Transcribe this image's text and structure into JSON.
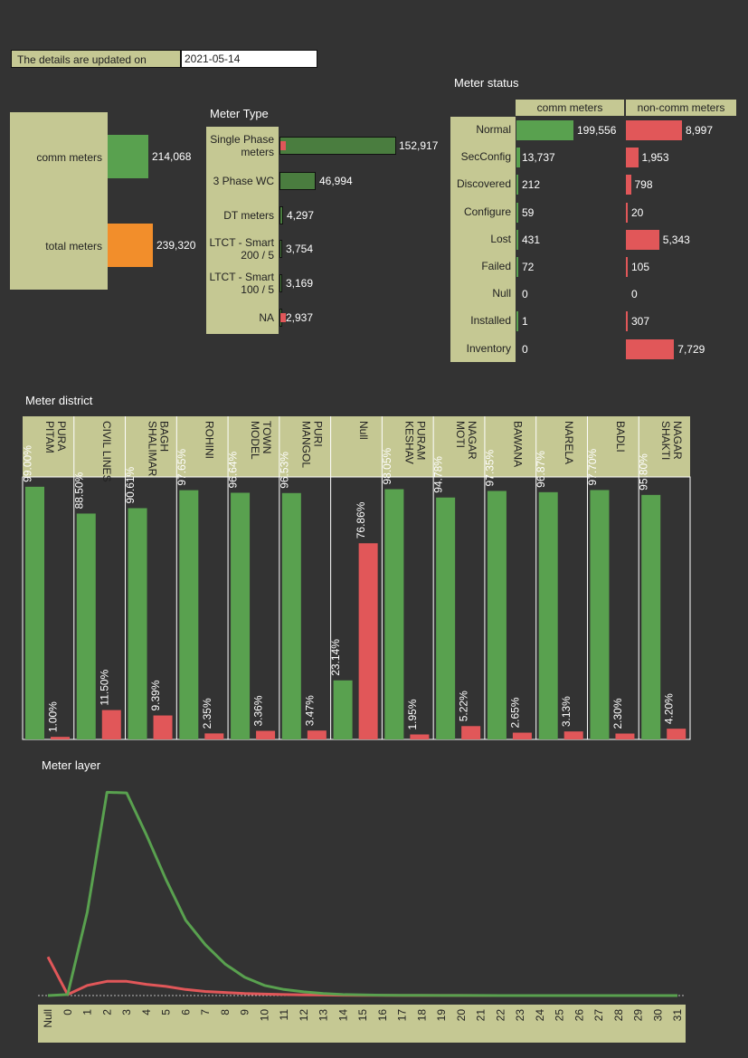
{
  "update": {
    "label": "The details are updated on",
    "date": "2021-05-14"
  },
  "colors": {
    "green": "#59a14f",
    "darkgreen": "#4a7d3f",
    "red": "#e15759",
    "orange": "#f28e2b",
    "khaki": "#c5c893",
    "bg": "#333333"
  },
  "totals": {
    "rows": [
      {
        "label": "comm meters",
        "value": 214068,
        "display": "214,068",
        "color": "#59a14f"
      },
      {
        "label": "total meters",
        "value": 239320,
        "display": "239,320",
        "color": "#f28e2b"
      }
    ]
  },
  "meter_type": {
    "title": "Meter Type",
    "rows": [
      {
        "label": "Single Phase meters",
        "value": 152917,
        "display": "152,917",
        "red": 1
      },
      {
        "label": "3 Phase WC",
        "value": 46994,
        "display": "46,994",
        "red": 0
      },
      {
        "label": "DT meters",
        "value": 4297,
        "display": "4,297",
        "red": 0
      },
      {
        "label": "LTCT - Smart 200 / 5",
        "value": 3754,
        "display": "3,754",
        "red": 0
      },
      {
        "label": "LTCT - Smart 100 / 5",
        "value": 3169,
        "display": "3,169",
        "red": 0
      },
      {
        "label": "NA",
        "value": 2937,
        "display": "2,937",
        "red": 1
      }
    ]
  },
  "meter_status": {
    "title": "Meter status",
    "col_comm": "comm meters",
    "col_noncomm": "non-comm meters",
    "rows": [
      {
        "label": "Normal",
        "comm": 199556,
        "comm_display": "199,556",
        "non": 8997,
        "non_display": "8,997"
      },
      {
        "label": "SecConfig",
        "comm": 13737,
        "comm_display": "13,737",
        "non": 1953,
        "non_display": "1,953"
      },
      {
        "label": "Discovered",
        "comm": 212,
        "comm_display": "212",
        "non": 798,
        "non_display": "798"
      },
      {
        "label": "Configure",
        "comm": 59,
        "comm_display": "59",
        "non": 20,
        "non_display": "20"
      },
      {
        "label": "Lost",
        "comm": 431,
        "comm_display": "431",
        "non": 5343,
        "non_display": "5,343"
      },
      {
        "label": "Failed",
        "comm": 72,
        "comm_display": "72",
        "non": 105,
        "non_display": "105"
      },
      {
        "label": "Null",
        "comm": 0,
        "comm_display": "0",
        "non": 0,
        "non_display": "0"
      },
      {
        "label": "Installed",
        "comm": 1,
        "comm_display": "1",
        "non": 307,
        "non_display": "307"
      },
      {
        "label": "Inventory",
        "comm": 0,
        "comm_display": "0",
        "non": 7729,
        "non_display": "7,729"
      }
    ]
  },
  "chart_data": [
    {
      "type": "bar",
      "title": "Meter district",
      "categories": [
        "PITAM PURA",
        "CIVIL LINES",
        "SHALIMAR BAGH",
        "ROHINI",
        "MODEL TOWN",
        "MANGOL PURI",
        "Null",
        "KESHAV PURAM",
        "MOTI NAGAR",
        "BAWANA",
        "NARELA",
        "BADLI",
        "SHAKTI NAGAR"
      ],
      "series": [
        {
          "values": [
            99.0,
            88.5,
            90.61,
            97.65,
            96.64,
            96.53,
            23.14,
            98.05,
            94.78,
            97.35,
            96.87,
            97.7,
            95.8
          ],
          "labels": [
            "99.00%",
            "88.50%",
            "90.61%",
            "97.65%",
            "96.64%",
            "96.53%",
            "23.14%",
            "98.05%",
            "94.78%",
            "97.35%",
            "96.87%",
            "97.70%",
            "95.80%"
          ]
        },
        {
          "values": [
            1.0,
            11.5,
            9.39,
            2.35,
            3.36,
            3.47,
            76.86,
            1.95,
            5.22,
            2.65,
            3.13,
            2.3,
            4.2
          ],
          "labels": [
            "1.00%",
            "11.50%",
            "9.39%",
            "2.35%",
            "3.36%",
            "3.47%",
            "76.86%",
            "1.95%",
            "5.22%",
            "2.65%",
            "3.13%",
            "2.30%",
            "4.20%"
          ]
        }
      ],
      "ylim": [
        0,
        100
      ]
    },
    {
      "type": "line",
      "title": "Meter layer",
      "x": [
        "Null",
        "0",
        "1",
        "2",
        "3",
        "4",
        "5",
        "6",
        "7",
        "8",
        "9",
        "10",
        "11",
        "12",
        "13",
        "14",
        "15",
        "16",
        "17",
        "18",
        "19",
        "20",
        "21",
        "22",
        "23",
        "24",
        "25",
        "26",
        "27",
        "28",
        "29",
        "30",
        "31"
      ],
      "series": [
        {
          "values": [
            0,
            500,
            41000,
            99800,
            99500,
            79000,
            57000,
            37000,
            25000,
            15500,
            9000,
            5000,
            3000,
            1800,
            1000,
            500,
            300,
            180,
            120,
            80,
            50,
            40,
            30,
            20,
            15,
            10,
            8,
            6,
            5,
            4,
            3,
            2,
            2
          ]
        },
        {
          "values": [
            19000,
            500,
            5000,
            7000,
            7000,
            5500,
            4500,
            3000,
            2000,
            1500,
            1000,
            700,
            500,
            350,
            250,
            180,
            130,
            90,
            60,
            45,
            35,
            25,
            20,
            15,
            10,
            8,
            6,
            5,
            4,
            3,
            2,
            2,
            1
          ]
        }
      ]
    }
  ]
}
